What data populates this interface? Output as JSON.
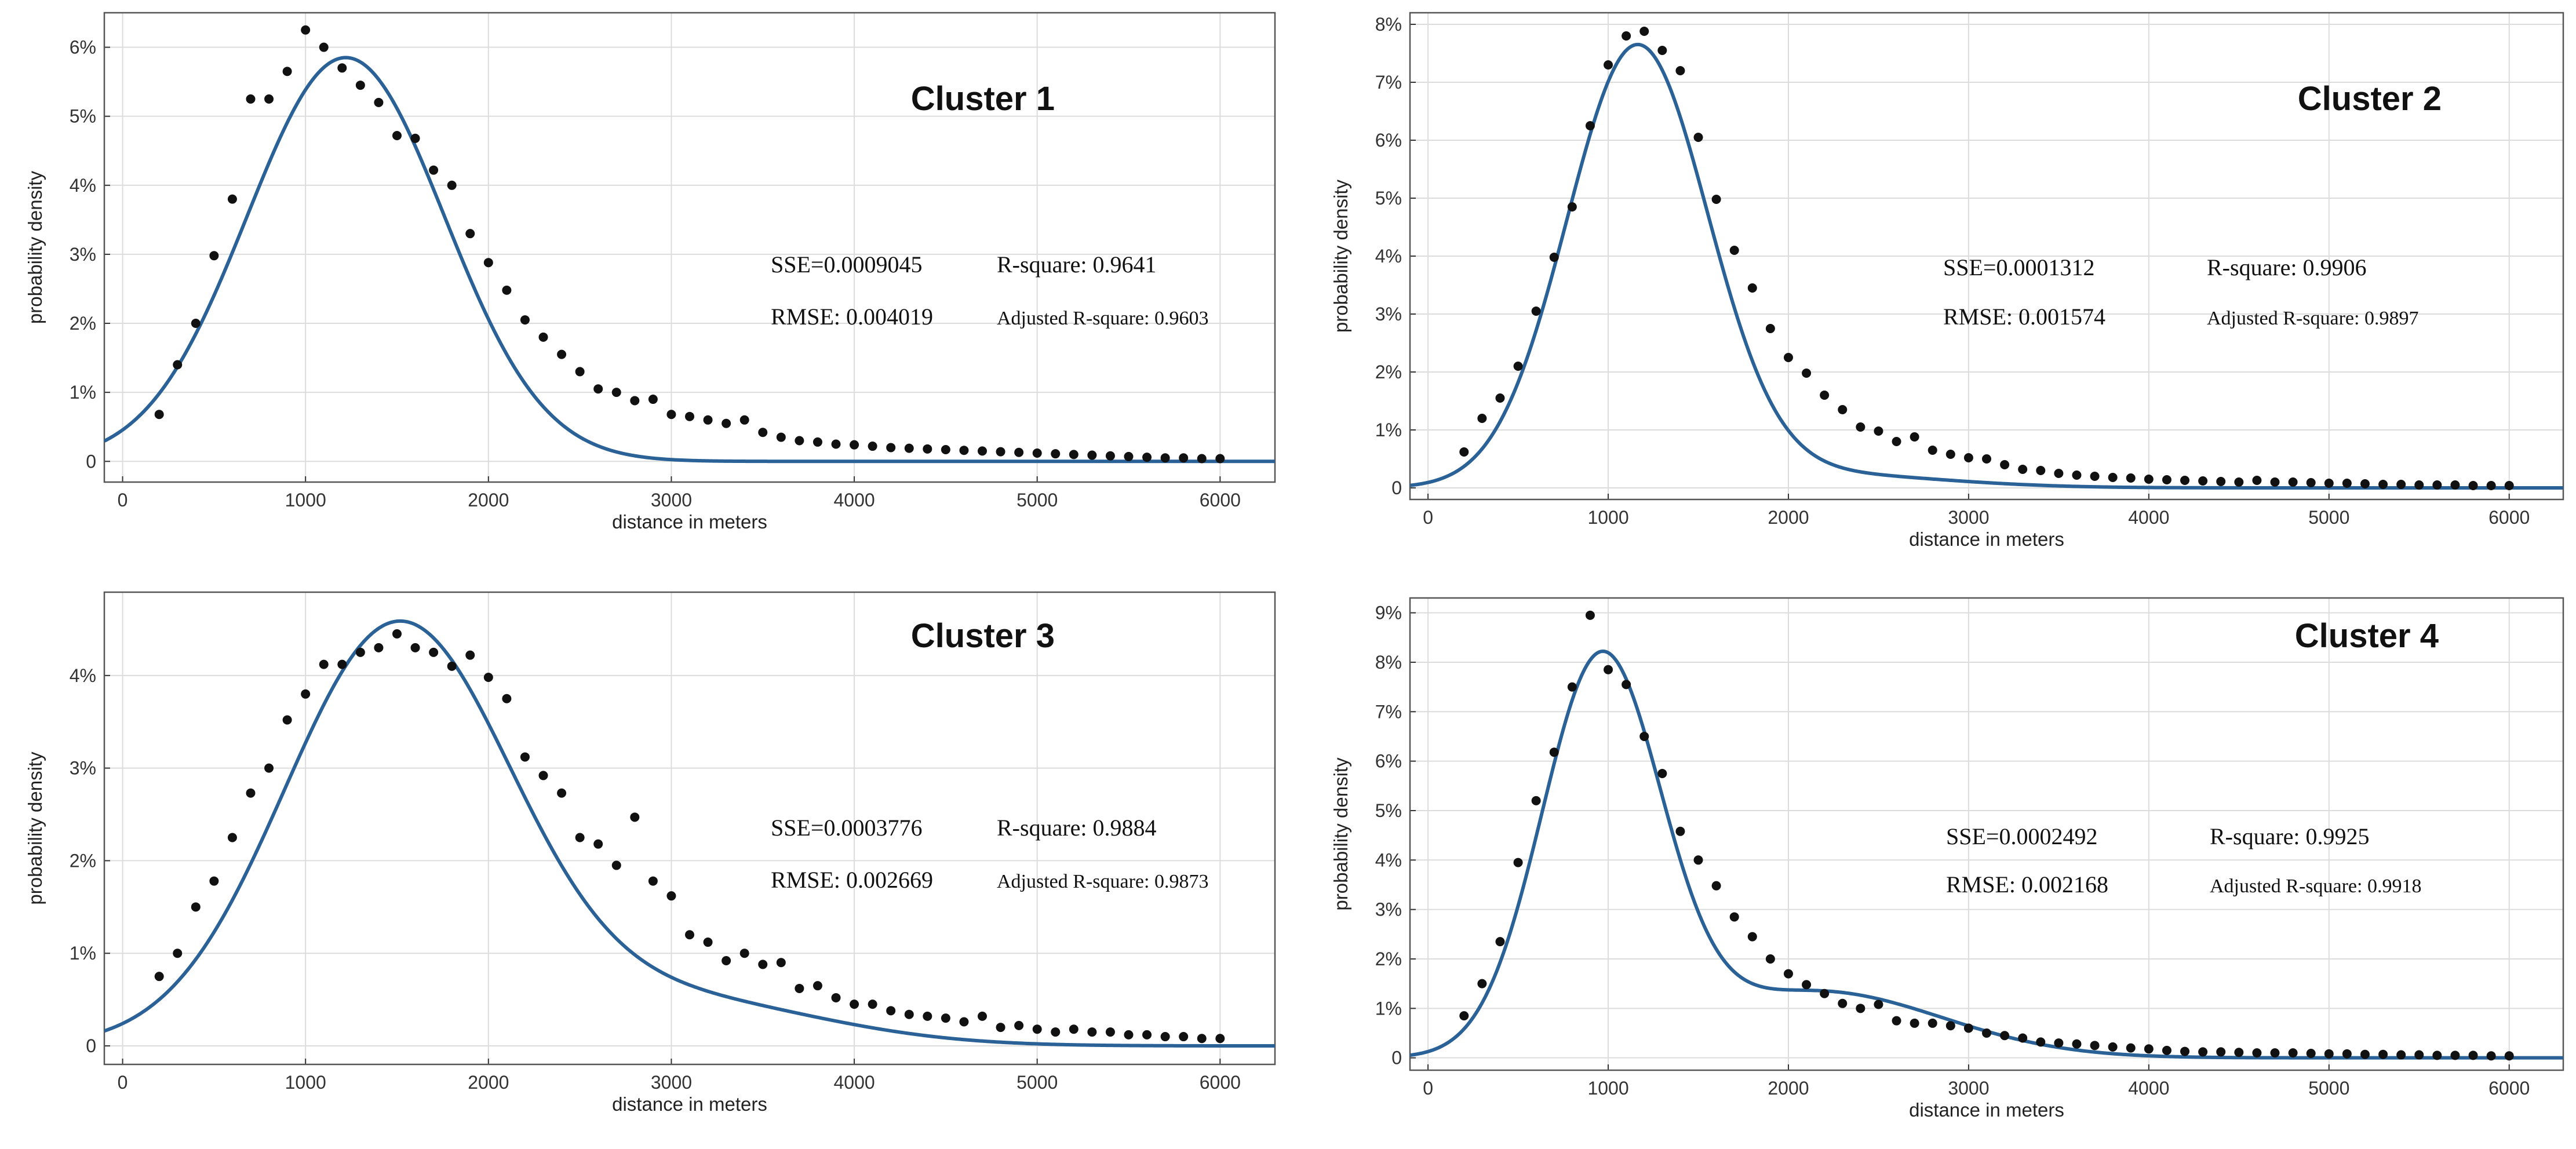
{
  "page": {
    "background": "#ffffff"
  },
  "chart_data": [
    {
      "type": "scatter",
      "title": "Cluster 1",
      "xlabel": "distance in meters",
      "ylabel": "probability density",
      "xlim": [
        -100,
        6300
      ],
      "ylim": [
        -0.3,
        6.5
      ],
      "xticks": [
        0,
        1000,
        2000,
        3000,
        4000,
        5000,
        6000
      ],
      "xtick_labels": [
        "0",
        "1000",
        "2000",
        "3000",
        "4000",
        "5000",
        "6000"
      ],
      "yticks": [
        0,
        1,
        2,
        3,
        4,
        5,
        6
      ],
      "ytick_labels": [
        "0",
        "1%",
        "2%",
        "3%",
        "4%",
        "5%",
        "6%"
      ],
      "grid": true,
      "line_color": "#2a6196",
      "stats": {
        "sse": "SSE=0.0009045",
        "r_square": "R-square: 0.9641",
        "rmse": "RMSE: 0.004019",
        "adj_r_square": "Adjusted R-square: 0.9603"
      },
      "fit": {
        "type": "gaussian",
        "components": [
          {
            "a": 5.85,
            "mu": 1220,
            "sigma": 540
          }
        ]
      },
      "points": {
        "x": [
          200,
          300,
          400,
          500,
          600,
          700,
          800,
          900,
          1000,
          1100,
          1200,
          1300,
          1400,
          1500,
          1600,
          1700,
          1800,
          1900,
          2000,
          2100,
          2200,
          2300,
          2400,
          2500,
          2600,
          2700,
          2800,
          2900,
          3000,
          3100,
          3200,
          3300,
          3400,
          3500,
          3600,
          3700,
          3800,
          3900,
          4000,
          4100,
          4200,
          4300,
          4400,
          4500,
          4600,
          4700,
          4800,
          4900,
          5000,
          5100,
          5200,
          5300,
          5400,
          5500,
          5600,
          5700,
          5800,
          5900,
          6000
        ],
        "y": [
          0.68,
          1.4,
          2.0,
          2.98,
          3.8,
          5.25,
          5.25,
          5.65,
          6.25,
          6.0,
          5.7,
          5.45,
          5.2,
          4.72,
          4.68,
          4.22,
          4.0,
          3.3,
          2.88,
          2.48,
          2.05,
          1.8,
          1.55,
          1.3,
          1.05,
          1.0,
          0.88,
          0.9,
          0.68,
          0.65,
          0.6,
          0.55,
          0.6,
          0.42,
          0.35,
          0.3,
          0.28,
          0.25,
          0.24,
          0.22,
          0.2,
          0.19,
          0.18,
          0.17,
          0.16,
          0.15,
          0.14,
          0.13,
          0.12,
          0.11,
          0.1,
          0.09,
          0.08,
          0.07,
          0.06,
          0.05,
          0.05,
          0.04,
          0.04
        ]
      }
    },
    {
      "type": "scatter",
      "title": "Cluster 2",
      "xlabel": "distance in meters",
      "ylabel": "probability density",
      "xlim": [
        -100,
        6300
      ],
      "ylim": [
        -0.2,
        8.2
      ],
      "xticks": [
        0,
        1000,
        2000,
        3000,
        4000,
        5000,
        6000
      ],
      "xtick_labels": [
        "0",
        "1000",
        "2000",
        "3000",
        "4000",
        "5000",
        "6000"
      ],
      "yticks": [
        0,
        1,
        2,
        3,
        4,
        5,
        6,
        7,
        8
      ],
      "ytick_labels": [
        "0",
        "1%",
        "2%",
        "3%",
        "4%",
        "5%",
        "6%",
        "7%",
        "8%"
      ],
      "grid": true,
      "line_color": "#2a6196",
      "stats": {
        "sse": "SSE=0.0001312",
        "r_square": "R-square: 0.9906",
        "rmse": "RMSE: 0.001574",
        "adj_r_square": "Adjusted R-square: 0.9897"
      },
      "fit": {
        "type": "gaussian",
        "components": [
          {
            "a": 7.55,
            "mu": 1160,
            "sigma": 390
          },
          {
            "a": 0.25,
            "mu": 2100,
            "sigma": 700
          }
        ]
      },
      "points": {
        "x": [
          200,
          300,
          400,
          500,
          600,
          700,
          800,
          900,
          1000,
          1100,
          1200,
          1300,
          1400,
          1500,
          1600,
          1700,
          1800,
          1900,
          2000,
          2100,
          2200,
          2300,
          2400,
          2500,
          2600,
          2700,
          2800,
          2900,
          3000,
          3100,
          3200,
          3300,
          3400,
          3500,
          3600,
          3700,
          3800,
          3900,
          4000,
          4100,
          4200,
          4300,
          4400,
          4500,
          4600,
          4700,
          4800,
          4900,
          5000,
          5100,
          5200,
          5300,
          5400,
          5500,
          5600,
          5700,
          5800,
          5900,
          6000
        ],
        "y": [
          0.62,
          1.2,
          1.55,
          2.1,
          3.05,
          3.98,
          4.85,
          6.25,
          7.3,
          7.8,
          7.88,
          7.55,
          7.2,
          6.05,
          4.98,
          4.1,
          3.45,
          2.75,
          2.25,
          1.98,
          1.6,
          1.35,
          1.05,
          0.98,
          0.8,
          0.88,
          0.65,
          0.58,
          0.52,
          0.5,
          0.4,
          0.32,
          0.3,
          0.25,
          0.22,
          0.2,
          0.18,
          0.17,
          0.15,
          0.14,
          0.13,
          0.12,
          0.11,
          0.1,
          0.13,
          0.1,
          0.1,
          0.09,
          0.08,
          0.08,
          0.07,
          0.06,
          0.06,
          0.05,
          0.05,
          0.05,
          0.04,
          0.04,
          0.04
        ]
      }
    },
    {
      "type": "scatter",
      "title": "Cluster 3",
      "xlabel": "distance in meters",
      "ylabel": "probability density",
      "xlim": [
        -100,
        6300
      ],
      "ylim": [
        -0.2,
        4.9
      ],
      "xticks": [
        0,
        1000,
        2000,
        3000,
        4000,
        5000,
        6000
      ],
      "xtick_labels": [
        "0",
        "1000",
        "2000",
        "3000",
        "4000",
        "5000",
        "6000"
      ],
      "yticks": [
        0,
        1,
        2,
        3,
        4
      ],
      "ytick_labels": [
        "0",
        "1%",
        "2%",
        "3%",
        "4%"
      ],
      "grid": true,
      "line_color": "#2a6196",
      "stats": {
        "sse": "SSE=0.0003776",
        "r_square": "R-square: 0.9884",
        "rmse": "RMSE: 0.002669",
        "adj_r_square": "Adjusted R-square: 0.9873"
      },
      "fit": {
        "type": "gaussian",
        "components": [
          {
            "a": 4.5,
            "mu": 1500,
            "sigma": 620
          },
          {
            "a": 0.5,
            "mu": 3000,
            "sigma": 800
          }
        ]
      },
      "points": {
        "x": [
          200,
          300,
          400,
          500,
          600,
          700,
          800,
          900,
          1000,
          1100,
          1200,
          1300,
          1400,
          1500,
          1600,
          1700,
          1800,
          1900,
          2000,
          2100,
          2200,
          2300,
          2400,
          2500,
          2600,
          2700,
          2800,
          2900,
          3000,
          3100,
          3200,
          3300,
          3400,
          3500,
          3600,
          3700,
          3800,
          3900,
          4000,
          4100,
          4200,
          4300,
          4400,
          4500,
          4600,
          4700,
          4800,
          4900,
          5000,
          5100,
          5200,
          5300,
          5400,
          5500,
          5600,
          5700,
          5800,
          5900,
          6000
        ],
        "y": [
          0.75,
          1.0,
          1.5,
          1.78,
          2.25,
          2.73,
          3.0,
          3.52,
          3.8,
          4.12,
          4.12,
          4.25,
          4.3,
          4.45,
          4.3,
          4.25,
          4.1,
          4.22,
          3.98,
          3.75,
          3.12,
          2.92,
          2.73,
          2.25,
          2.18,
          1.95,
          2.47,
          1.78,
          1.62,
          1.2,
          1.12,
          0.92,
          1.0,
          0.88,
          0.9,
          0.62,
          0.65,
          0.52,
          0.45,
          0.45,
          0.38,
          0.34,
          0.32,
          0.3,
          0.26,
          0.32,
          0.2,
          0.22,
          0.18,
          0.15,
          0.18,
          0.15,
          0.15,
          0.12,
          0.12,
          0.1,
          0.1,
          0.08,
          0.08
        ]
      }
    },
    {
      "type": "scatter",
      "title": "Cluster 4",
      "xlabel": "distance in meters",
      "ylabel": "probability density",
      "xlim": [
        -100,
        6300
      ],
      "ylim": [
        -0.25,
        9.3
      ],
      "xticks": [
        0,
        1000,
        2000,
        3000,
        4000,
        5000,
        6000
      ],
      "xtick_labels": [
        "0",
        "1000",
        "2000",
        "3000",
        "4000",
        "5000",
        "6000"
      ],
      "yticks": [
        0,
        1,
        2,
        3,
        4,
        5,
        6,
        7,
        8,
        9
      ],
      "ytick_labels": [
        "0",
        "1%",
        "2%",
        "3%",
        "4%",
        "5%",
        "6%",
        "7%",
        "8%",
        "9%"
      ],
      "grid": true,
      "line_color": "#2a6196",
      "stats": {
        "sse": "SSE=0.0002492",
        "r_square": "R-square: 0.9925",
        "rmse": "RMSE: 0.002168",
        "adj_r_square": "Adjusted R-square: 0.9918"
      },
      "fit": {
        "type": "gaussian",
        "components": [
          {
            "a": 7.9,
            "mu": 960,
            "sigma": 330
          },
          {
            "a": 1.35,
            "mu": 2150,
            "sigma": 700
          }
        ]
      },
      "points": {
        "x": [
          200,
          300,
          400,
          500,
          600,
          700,
          800,
          900,
          1000,
          1100,
          1200,
          1300,
          1400,
          1500,
          1600,
          1700,
          1800,
          1900,
          2000,
          2100,
          2200,
          2300,
          2400,
          2500,
          2600,
          2700,
          2800,
          2900,
          3000,
          3100,
          3200,
          3300,
          3400,
          3500,
          3600,
          3700,
          3800,
          3900,
          4000,
          4100,
          4200,
          4300,
          4400,
          4500,
          4600,
          4700,
          4800,
          4900,
          5000,
          5100,
          5200,
          5300,
          5400,
          5500,
          5600,
          5700,
          5800,
          5900,
          6000
        ],
        "y": [
          0.85,
          1.5,
          2.35,
          3.95,
          5.2,
          6.18,
          7.5,
          8.95,
          7.85,
          7.55,
          6.5,
          5.75,
          4.58,
          4.0,
          3.48,
          2.85,
          2.45,
          2.0,
          1.7,
          1.48,
          1.3,
          1.1,
          1.0,
          1.08,
          0.75,
          0.7,
          0.7,
          0.65,
          0.6,
          0.5,
          0.45,
          0.4,
          0.32,
          0.3,
          0.28,
          0.25,
          0.22,
          0.2,
          0.18,
          0.15,
          0.13,
          0.12,
          0.12,
          0.11,
          0.1,
          0.1,
          0.1,
          0.09,
          0.08,
          0.08,
          0.07,
          0.07,
          0.06,
          0.06,
          0.05,
          0.05,
          0.05,
          0.04,
          0.04
        ]
      }
    }
  ]
}
